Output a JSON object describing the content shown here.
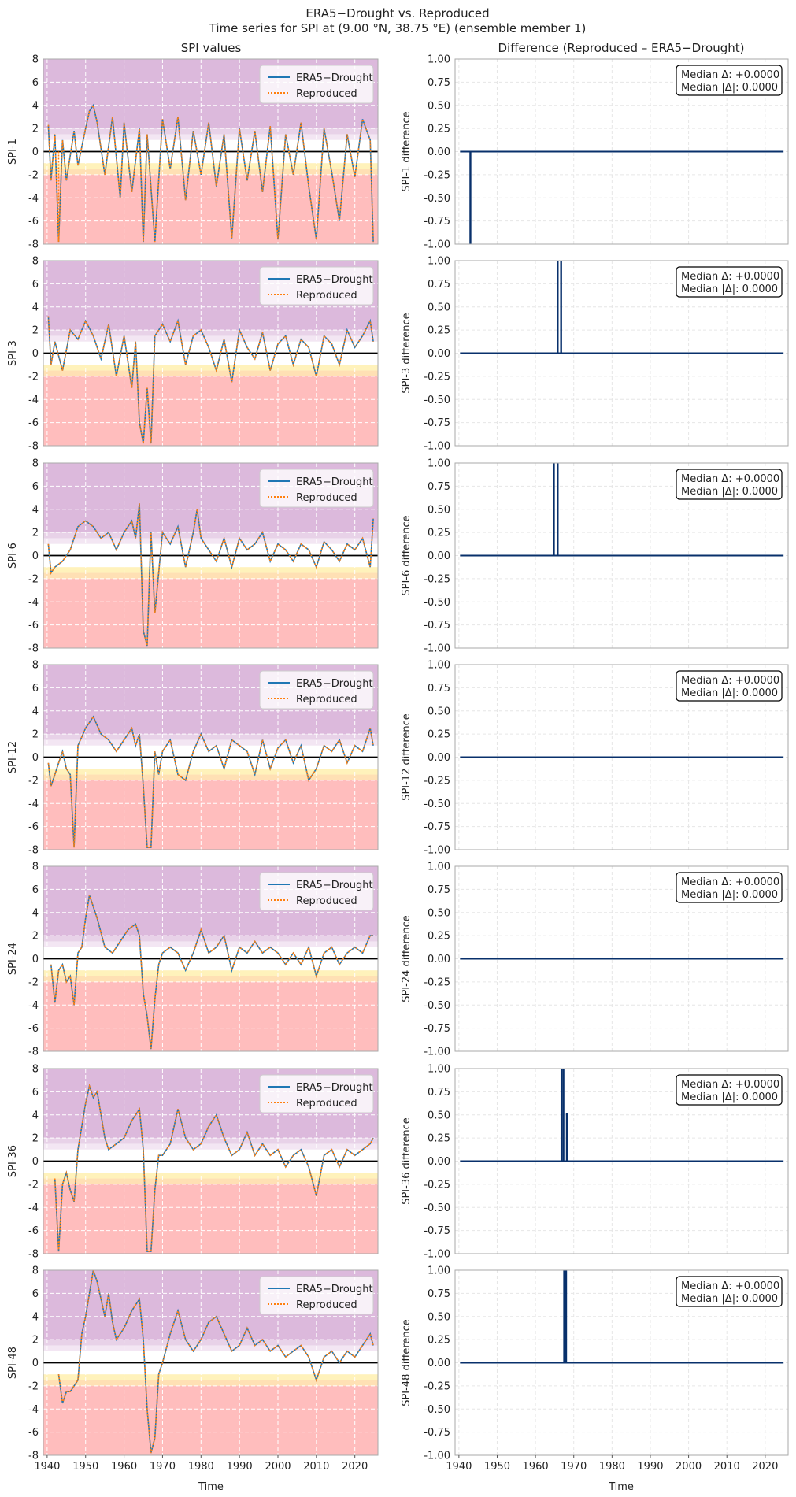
{
  "title_line1": "ERA5−Drought vs. Reproduced",
  "title_line2": "Time series for SPI at (9.00 °N, 38.75 °E) (ensemble member 1)",
  "left_column_title": "SPI values",
  "right_column_title": "Difference (Reproduced – ERA5−Drought)",
  "xlabel": "Time",
  "legend": [
    "ERA5−Drought",
    "Reproduced"
  ],
  "colors": {
    "era5": "#1f77b4",
    "reproduced": "#ff7f0e",
    "diff": "#08306b",
    "band_wet": "#dcb9dc",
    "band_normal": "#ffffff",
    "band_mild": "#fff2bb",
    "band_moderate": "#ffe0b4",
    "band_dry": "#ffbdbd"
  },
  "chart_data": [
    {
      "type": "line",
      "panel": "SPI values",
      "ylabel": "SPI-1",
      "ylim": [
        -8,
        8
      ],
      "yticks": [
        -8,
        -6,
        -4,
        -2,
        0,
        2,
        4,
        6,
        8
      ],
      "xlim": [
        1939,
        2026
      ],
      "xticks": [
        1940,
        1950,
        1960,
        1970,
        1980,
        1990,
        2000,
        2010,
        2020
      ],
      "grid": true,
      "legend_position": "top-right",
      "series": [
        {
          "name": "ERA5−Drought",
          "style": "solid"
        },
        {
          "name": "Reproduced",
          "style": "dotted"
        }
      ],
      "x": [
        1940.3,
        1941,
        1942,
        1943,
        1944,
        1945,
        1947,
        1948,
        1950,
        1951,
        1952,
        1953,
        1955,
        1957,
        1959,
        1960,
        1962,
        1964,
        1965,
        1966,
        1968,
        1970,
        1972,
        1974,
        1976,
        1978,
        1980,
        1982,
        1984,
        1986,
        1988,
        1990,
        1992,
        1994,
        1996,
        1998,
        2000,
        2002,
        2004,
        2006,
        2008,
        2010,
        2012,
        2014,
        2016,
        2018,
        2020,
        2022,
        2024,
        2024.8
      ],
      "values": [
        2.3,
        -2.5,
        1.5,
        -7.8,
        1.0,
        -2.5,
        1.8,
        -1.2,
        2.0,
        3.5,
        4.0,
        2.5,
        -2.0,
        3.0,
        -4.0,
        2.5,
        -3.5,
        2.0,
        -7.8,
        1.5,
        -7.8,
        2.8,
        -1.5,
        3.0,
        -4.2,
        1.8,
        -2.0,
        2.5,
        -3.0,
        1.5,
        -7.5,
        2.0,
        -2.5,
        1.8,
        -3.5,
        2.2,
        -7.6,
        1.5,
        -2.0,
        2.5,
        -3.0,
        -7.6,
        2.0,
        -1.8,
        -6.0,
        1.5,
        -2.2,
        2.8,
        1.0,
        -7.8
      ],
      "reproduced_deviation": {
        "x": 1943,
        "value": -7.9
      }
    },
    {
      "type": "line",
      "panel": "Difference",
      "ylabel": "SPI-1 difference",
      "ylim": [
        -1.0,
        1.0
      ],
      "yticks": [
        -1.0,
        -0.75,
        -0.5,
        -0.25,
        0.0,
        0.25,
        0.5,
        0.75,
        1.0
      ],
      "xlim": [
        1939,
        2026
      ],
      "median_delta": "Median Δ: +0.0000",
      "median_abs_delta": "Median |Δ|: 0.0000",
      "spikes": [
        {
          "x": 1943,
          "value": -1.0
        }
      ]
    },
    {
      "type": "line",
      "panel": "SPI values",
      "ylabel": "SPI-3",
      "ylim": [
        -8,
        8
      ],
      "x": [
        1940.3,
        1941,
        1942,
        1944,
        1946,
        1948,
        1950,
        1952,
        1954,
        1956,
        1958,
        1960,
        1962,
        1963,
        1964,
        1965,
        1966,
        1967,
        1968,
        1970,
        1972,
        1974,
        1976,
        1978,
        1980,
        1982,
        1984,
        1986,
        1988,
        1990,
        1992,
        1994,
        1996,
        1998,
        2000,
        2002,
        2004,
        2006,
        2008,
        2010,
        2012,
        2014,
        2016,
        2018,
        2020,
        2022,
        2024,
        2024.8
      ],
      "values": [
        3.2,
        -1.0,
        1.0,
        -1.5,
        2.0,
        1.2,
        2.8,
        1.5,
        -0.5,
        2.5,
        -2.0,
        1.5,
        -3.0,
        1.0,
        -6.0,
        -7.8,
        -3.0,
        -7.8,
        1.5,
        2.5,
        1.0,
        2.8,
        -1.0,
        1.5,
        2.0,
        0.5,
        -1.5,
        1.2,
        -2.5,
        2.0,
        0.5,
        -0.5,
        1.8,
        -1.5,
        0.8,
        1.5,
        -1.0,
        1.2,
        0.5,
        -2.0,
        1.5,
        0.8,
        -1.0,
        2.0,
        0.5,
        1.5,
        2.8,
        1.0
      ]
    },
    {
      "type": "line",
      "panel": "Difference",
      "ylabel": "SPI-3 difference",
      "ylim": [
        -1.0,
        1.0
      ],
      "median_delta": "Median Δ: +0.0000",
      "median_abs_delta": "Median |Δ|: 0.0000",
      "spikes": [
        {
          "x": 1965.8,
          "value": 1.0
        },
        {
          "x": 1966.7,
          "value": 1.0
        }
      ]
    },
    {
      "type": "line",
      "panel": "SPI values",
      "ylabel": "SPI-6",
      "ylim": [
        -8,
        8
      ],
      "x": [
        1940.3,
        1941,
        1942,
        1944,
        1946,
        1948,
        1950,
        1952,
        1954,
        1956,
        1958,
        1960,
        1962,
        1963,
        1964,
        1965,
        1966,
        1967,
        1968,
        1970,
        1972,
        1974,
        1976,
        1978,
        1979,
        1980,
        1982,
        1984,
        1986,
        1988,
        1990,
        1992,
        1994,
        1996,
        1998,
        2000,
        2002,
        2004,
        2006,
        2008,
        2010,
        2012,
        2014,
        2016,
        2018,
        2020,
        2022,
        2024,
        2024.8
      ],
      "values": [
        1.0,
        -1.5,
        -1.0,
        -0.5,
        0.5,
        2.5,
        3.0,
        2.5,
        1.5,
        2.0,
        0.5,
        2.0,
        3.0,
        1.5,
        4.5,
        -6.5,
        -7.8,
        2.0,
        -5.0,
        2.0,
        1.0,
        2.5,
        -1.0,
        2.0,
        4.0,
        1.5,
        0.5,
        -0.5,
        1.5,
        -1.0,
        1.5,
        0.5,
        1.0,
        2.0,
        -0.5,
        1.0,
        0.5,
        -0.5,
        1.0,
        0.5,
        -1.0,
        1.2,
        0.5,
        -0.5,
        1.0,
        0.5,
        1.5,
        -1.0,
        3.2
      ]
    },
    {
      "type": "line",
      "panel": "Difference",
      "ylabel": "SPI-6 difference",
      "ylim": [
        -1.0,
        1.0
      ],
      "median_delta": "Median Δ: +0.0000",
      "median_abs_delta": "Median |Δ|: 0.0000",
      "spikes": [
        {
          "x": 1964.8,
          "value": 1.0
        },
        {
          "x": 1965.8,
          "value": 1.0
        }
      ]
    },
    {
      "type": "line",
      "panel": "SPI values",
      "ylabel": "SPI-12",
      "ylim": [
        -8,
        8
      ],
      "x": [
        1940.3,
        1941,
        1942,
        1943,
        1944,
        1945,
        1946,
        1947,
        1948,
        1950,
        1952,
        1954,
        1956,
        1958,
        1960,
        1962,
        1963,
        1964,
        1965,
        1966,
        1967,
        1968,
        1969,
        1970,
        1972,
        1974,
        1976,
        1978,
        1980,
        1982,
        1984,
        1986,
        1988,
        1990,
        1992,
        1994,
        1996,
        1998,
        2000,
        2002,
        2004,
        2006,
        2008,
        2010,
        2012,
        2014,
        2016,
        2018,
        2020,
        2022,
        2024,
        2024.8
      ],
      "values": [
        -0.5,
        -2.5,
        -1.5,
        -0.5,
        0.5,
        -1.0,
        -1.5,
        -7.8,
        1.0,
        2.5,
        3.5,
        2.0,
        1.5,
        0.5,
        1.5,
        2.5,
        1.0,
        2.0,
        -2.5,
        -7.8,
        -7.8,
        0.5,
        -1.5,
        0.5,
        1.5,
        -1.5,
        -2.0,
        0.5,
        2.0,
        0.5,
        1.0,
        -1.0,
        1.5,
        1.0,
        0.5,
        -1.5,
        1.5,
        -1.0,
        0.8,
        1.5,
        -0.5,
        1.0,
        -2.0,
        -1.0,
        1.0,
        0.5,
        1.5,
        -0.5,
        1.0,
        0.5,
        2.5,
        1.0
      ]
    },
    {
      "type": "line",
      "panel": "Difference",
      "ylabel": "SPI-12 difference",
      "ylim": [
        -1.0,
        1.0
      ],
      "median_delta": "Median Δ: +0.0000",
      "median_abs_delta": "Median |Δ|: 0.0000",
      "spikes": []
    },
    {
      "type": "line",
      "panel": "SPI values",
      "ylabel": "SPI-24",
      "ylim": [
        -8,
        8
      ],
      "x": [
        1941,
        1942,
        1943,
        1944,
        1945,
        1946,
        1947,
        1948,
        1949,
        1950,
        1951,
        1952,
        1953,
        1955,
        1957,
        1959,
        1961,
        1963,
        1964,
        1965,
        1966,
        1967,
        1968,
        1969,
        1970,
        1972,
        1974,
        1976,
        1978,
        1980,
        1982,
        1984,
        1986,
        1988,
        1990,
        1992,
        1994,
        1996,
        1998,
        2000,
        2002,
        2004,
        2006,
        2008,
        2010,
        2012,
        2014,
        2016,
        2018,
        2020,
        2022,
        2024,
        2024.8
      ],
      "values": [
        -0.5,
        -3.8,
        -1.0,
        -0.5,
        -2.0,
        -1.5,
        -4.0,
        0.5,
        1.0,
        3.5,
        5.5,
        4.5,
        3.5,
        1.0,
        0.5,
        1.5,
        2.5,
        3.0,
        2.0,
        -3.0,
        -5.0,
        -7.8,
        -3.5,
        -0.5,
        0.5,
        1.0,
        0.5,
        -1.0,
        0.5,
        2.5,
        0.5,
        1.0,
        2.0,
        -1.0,
        1.0,
        0.5,
        1.5,
        0.5,
        1.0,
        0.5,
        -0.5,
        0.5,
        -0.5,
        1.0,
        -1.5,
        0.5,
        1.0,
        -0.5,
        0.5,
        1.0,
        0.5,
        2.0,
        2.0
      ]
    },
    {
      "type": "line",
      "panel": "Difference",
      "ylabel": "SPI-24 difference",
      "ylim": [
        -1.0,
        1.0
      ],
      "median_delta": "Median Δ: +0.0000",
      "median_abs_delta": "Median |Δ|: 0.0000",
      "spikes": []
    },
    {
      "type": "line",
      "panel": "SPI values",
      "ylabel": "SPI-36",
      "ylim": [
        -8,
        8
      ],
      "x": [
        1942,
        1943,
        1944,
        1945,
        1946,
        1947,
        1948,
        1949,
        1950,
        1951,
        1952,
        1953,
        1954,
        1955,
        1956,
        1958,
        1960,
        1962,
        1964,
        1965,
        1966,
        1967,
        1968,
        1969,
        1970,
        1972,
        1974,
        1976,
        1978,
        1980,
        1982,
        1984,
        1986,
        1988,
        1990,
        1992,
        1994,
        1996,
        1998,
        2000,
        2002,
        2004,
        2006,
        2008,
        2010,
        2012,
        2014,
        2016,
        2018,
        2020,
        2022,
        2024,
        2024.8
      ],
      "values": [
        -1.5,
        -7.8,
        -2.0,
        -1.0,
        -2.5,
        -3.5,
        1.0,
        3.0,
        5.0,
        6.5,
        5.5,
        6.0,
        4.0,
        2.0,
        1.0,
        1.5,
        2.0,
        3.5,
        4.5,
        1.0,
        -7.8,
        -7.8,
        -2.5,
        0.5,
        0.5,
        1.5,
        4.5,
        2.0,
        1.0,
        1.5,
        3.0,
        4.0,
        2.0,
        0.5,
        1.0,
        2.5,
        0.5,
        1.5,
        0.5,
        1.0,
        -0.5,
        0.5,
        1.0,
        -0.5,
        -3.0,
        0.5,
        1.0,
        -0.5,
        1.0,
        0.5,
        1.0,
        1.5,
        2.0
      ]
    },
    {
      "type": "line",
      "panel": "Difference",
      "ylabel": "SPI-36 difference",
      "ylim": [
        -1.0,
        1.0
      ],
      "median_delta": "Median Δ: +0.0000",
      "median_abs_delta": "Median |Δ|: 0.0000",
      "spikes": [
        {
          "x": 1966.8,
          "value": 1.0
        },
        {
          "x": 1967.3,
          "value": 1.0
        },
        {
          "x": 1968.2,
          "value": 0.52
        }
      ]
    },
    {
      "type": "line",
      "panel": "SPI values",
      "ylabel": "SPI-48",
      "ylim": [
        -8,
        8
      ],
      "x": [
        1943,
        1944,
        1945,
        1946,
        1947,
        1948,
        1949,
        1950,
        1951,
        1952,
        1953,
        1954,
        1955,
        1956,
        1957,
        1958,
        1960,
        1962,
        1964,
        1965,
        1966,
        1967,
        1968,
        1969,
        1970,
        1972,
        1974,
        1976,
        1978,
        1980,
        1982,
        1984,
        1986,
        1988,
        1990,
        1992,
        1994,
        1996,
        1998,
        2000,
        2002,
        2004,
        2006,
        2008,
        2010,
        2012,
        2014,
        2016,
        2018,
        2020,
        2022,
        2024,
        2024.8
      ],
      "values": [
        -1.0,
        -3.5,
        -2.5,
        -2.5,
        -2.0,
        -1.5,
        2.5,
        4.0,
        6.0,
        8.0,
        7.0,
        5.5,
        4.0,
        6.0,
        3.5,
        2.0,
        3.0,
        4.5,
        5.5,
        2.0,
        -4.0,
        -7.8,
        -6.5,
        -1.0,
        0.0,
        2.5,
        4.5,
        2.0,
        1.0,
        2.0,
        3.5,
        4.0,
        2.5,
        1.0,
        1.5,
        3.0,
        1.5,
        2.0,
        1.0,
        1.5,
        0.5,
        1.0,
        1.5,
        0.5,
        -1.5,
        0.5,
        1.0,
        0.0,
        1.0,
        0.5,
        1.5,
        2.5,
        1.5
      ]
    },
    {
      "type": "line",
      "panel": "Difference",
      "ylabel": "SPI-48 difference",
      "ylim": [
        -1.0,
        1.0
      ],
      "median_delta": "Median Δ: +0.0000",
      "median_abs_delta": "Median |Δ|: 0.0000",
      "spikes": [
        {
          "x": 1967.5,
          "value": 1.0
        },
        {
          "x": 1968.0,
          "value": 1.0
        }
      ]
    }
  ]
}
